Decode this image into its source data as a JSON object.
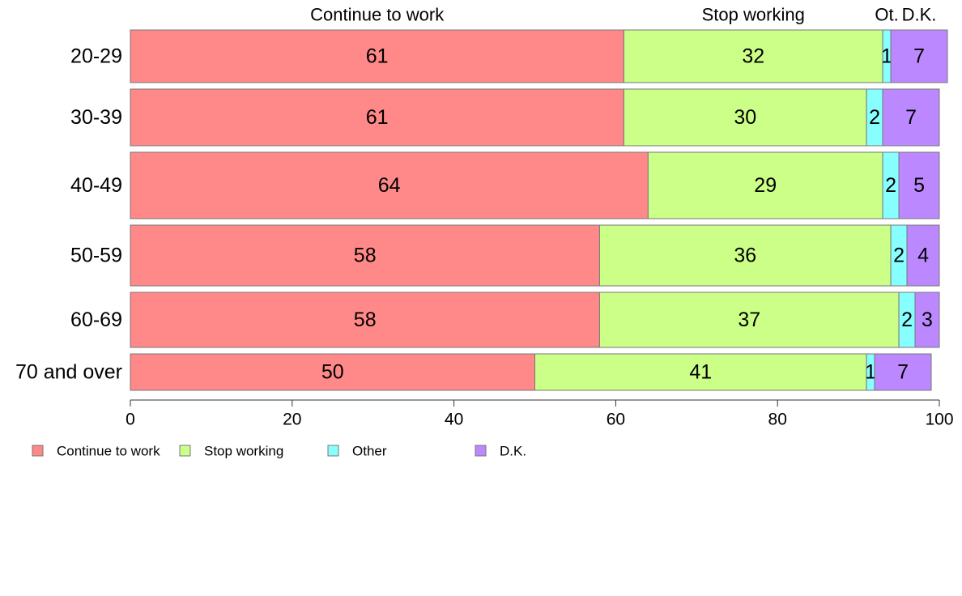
{
  "chart_data": {
    "type": "bar",
    "orientation": "horizontal",
    "stacked": true,
    "categories": [
      "20-29",
      "30-39",
      "40-49",
      "50-59",
      "60-69",
      "70 and over"
    ],
    "series": [
      {
        "name": "Continue to work",
        "top_label": "Continue to work",
        "color": "#FF8888",
        "values": [
          61,
          61,
          64,
          58,
          58,
          50
        ]
      },
      {
        "name": "Stop working",
        "top_label": "Stop working",
        "color": "#CCFF88",
        "values": [
          32,
          30,
          29,
          36,
          37,
          41
        ]
      },
      {
        "name": "Other",
        "top_label": "Ot.",
        "color": "#88FFFF",
        "values": [
          1,
          2,
          2,
          2,
          2,
          1
        ]
      },
      {
        "name": "D.K.",
        "top_label": "D.K.",
        "color": "#BB88FF",
        "values": [
          7,
          7,
          5,
          4,
          3,
          7
        ]
      }
    ],
    "xlim": [
      0,
      100
    ],
    "xticks": [
      "0",
      "20",
      "40",
      "60",
      "80",
      "100"
    ],
    "legend_position": "bottom-left",
    "grid": false
  }
}
